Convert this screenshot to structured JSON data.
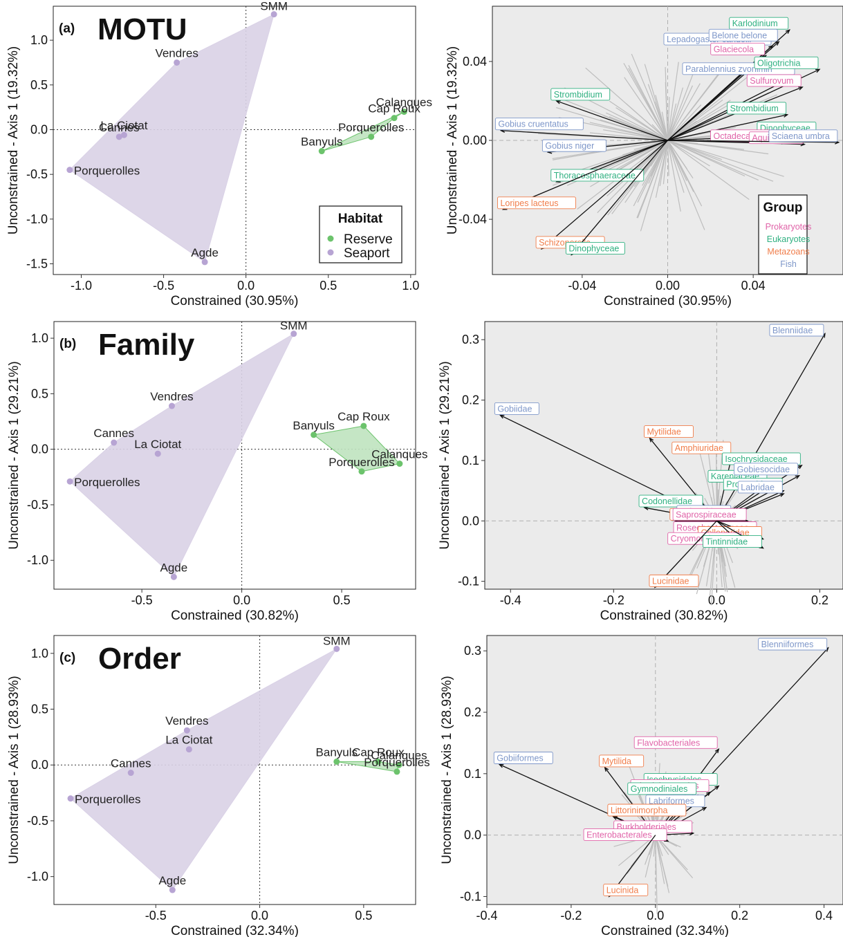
{
  "figure": {
    "colors": {
      "seaport_fill": "#d9d1e6",
      "seaport_point": "#b7a4d3",
      "reserve_fill": "#bfe3bf",
      "reserve_point": "#6cc36c",
      "prokaryotes": "#e063a8",
      "eukaryotes": "#2fb080",
      "metazoans": "#f07d4a",
      "fish": "#7e97c9",
      "biplot_bg": "#ebebeb",
      "grey_arrow": "#bdbdbd"
    },
    "habitat_legend": {
      "title": "Habitat",
      "items": [
        {
          "label": "Reserve",
          "color": "#6cc36c"
        },
        {
          "label": "Seaport",
          "color": "#b7a4d3"
        }
      ]
    },
    "group_legend": {
      "title": "Group",
      "items": [
        {
          "label": "Prokaryotes",
          "color": "#e063a8"
        },
        {
          "label": "Eukaryotes",
          "color": "#2fb080"
        },
        {
          "label": "Metazoans",
          "color": "#f07d4a"
        },
        {
          "label": "Fish",
          "color": "#7e97c9"
        }
      ]
    }
  },
  "chart_data": [
    {
      "panel": "(a)",
      "title": "MOTU",
      "type": "scatter",
      "xlabel": "Constrained (30.95%)",
      "ylabel": "Unconstrained - Axis 1 (19.32%)",
      "xlim": [
        -1.17,
        1.03
      ],
      "ylim": [
        -1.62,
        1.38
      ],
      "xticks": [
        -1.0,
        -0.5,
        0.0,
        0.5,
        1.0
      ],
      "xtick_labels": [
        "-1.0",
        "-0.5",
        "0.0",
        "0.5",
        "1.0"
      ],
      "yticks": [
        1.0,
        0.5,
        0.0,
        -0.5,
        -1.0,
        -1.5
      ],
      "ytick_labels": [
        "1.0",
        "0.5",
        "0.0",
        "-0.5",
        "-1.0",
        "-1.5"
      ],
      "seaport_hull": [
        [
          0.17,
          1.29
        ],
        [
          -0.42,
          0.75
        ],
        [
          -1.07,
          -0.45
        ],
        [
          -0.25,
          -1.48
        ]
      ],
      "reserve_hull": [
        [
          0.96,
          0.2
        ],
        [
          0.46,
          -0.24
        ],
        [
          0.76,
          -0.08
        ],
        [
          0.9,
          0.13
        ]
      ],
      "points": [
        {
          "label": "SMM",
          "x": 0.17,
          "y": 1.29,
          "habitat": "Seaport"
        },
        {
          "label": "Vendres",
          "x": -0.42,
          "y": 0.75,
          "habitat": "Seaport"
        },
        {
          "label": "La Ciotat",
          "x": -0.74,
          "y": -0.06,
          "habitat": "Seaport"
        },
        {
          "label": "Cannes",
          "x": -0.77,
          "y": -0.08,
          "habitat": "Seaport"
        },
        {
          "label": "Porquerolles",
          "x": -1.07,
          "y": -0.45,
          "habitat": "Seaport"
        },
        {
          "label": "Agde",
          "x": -0.25,
          "y": -1.48,
          "habitat": "Seaport"
        },
        {
          "label": "Calanques",
          "x": 0.96,
          "y": 0.2,
          "habitat": "Reserve"
        },
        {
          "label": "Cap Roux",
          "x": 0.9,
          "y": 0.13,
          "habitat": "Reserve"
        },
        {
          "label": "Porquerolles",
          "x": 0.76,
          "y": -0.08,
          "habitat": "Reserve"
        },
        {
          "label": "Banyuls",
          "x": 0.46,
          "y": -0.24,
          "habitat": "Reserve"
        }
      ]
    },
    {
      "panel": "",
      "title": "",
      "type": "scatter",
      "xlabel": "Constrained (30.95%)",
      "ylabel": "Unconstrained - Axis 1 (19.32%)",
      "xlim": [
        -0.082,
        0.082
      ],
      "ylim": [
        -0.068,
        0.068
      ],
      "xticks": [
        -0.04,
        0.0,
        0.04
      ],
      "xtick_labels": [
        "-0.04",
        "0.00",
        "0.04"
      ],
      "yticks": [
        0.04,
        0.0,
        -0.04
      ],
      "ytick_labels": [
        "0.04",
        "0.00",
        "-0.04"
      ],
      "arrows": [
        {
          "label": "Lepadogaster candolii",
          "group": "Fish",
          "x": 0.049,
          "y": 0.048
        },
        {
          "label": "Karlodinium",
          "group": "Eukaryotes",
          "x": 0.057,
          "y": 0.056
        },
        {
          "label": "Belone belone",
          "group": "Fish",
          "x": 0.052,
          "y": 0.05
        },
        {
          "label": "Glaciecola",
          "group": "Prokaryotes",
          "x": 0.046,
          "y": 0.043
        },
        {
          "label": "Parablennius zvonimiri",
          "group": "Fish",
          "x": 0.06,
          "y": 0.033
        },
        {
          "label": "Oligotrichia",
          "group": "Eukaryotes",
          "x": 0.071,
          "y": 0.036
        },
        {
          "label": "Sulfurovum",
          "group": "Prokaryotes",
          "x": 0.063,
          "y": 0.027
        },
        {
          "label": "Strombidium",
          "group": "Eukaryotes",
          "x": -0.052,
          "y": 0.02
        },
        {
          "label": "Strombidium",
          "group": "Eukaryotes",
          "x": 0.056,
          "y": 0.013
        },
        {
          "label": "Gobius cruentatus",
          "group": "Fish",
          "x": -0.078,
          "y": 0.005
        },
        {
          "label": "Dinophyceae",
          "group": "Eukaryotes",
          "x": 0.07,
          "y": 0.003
        },
        {
          "label": "Gobius niger",
          "group": "Fish",
          "x": -0.056,
          "y": -0.006
        },
        {
          "label": "Octadecabacter",
          "group": "Prokaryotes",
          "x": 0.055,
          "y": -0.001
        },
        {
          "label": "Aquirestis",
          "group": "Prokaryotes",
          "x": 0.064,
          "y": -0.002
        },
        {
          "label": "Sciaena umbra",
          "group": "Fish",
          "x": 0.08,
          "y": -0.001
        },
        {
          "label": "Thoracosphaeraceae",
          "group": "Eukaryotes",
          "x": -0.052,
          "y": -0.021
        },
        {
          "label": "Loripes lacteus",
          "group": "Metazoans",
          "x": -0.077,
          "y": -0.035
        },
        {
          "label": "Schizoporella",
          "group": "Metazoans",
          "x": -0.059,
          "y": -0.055
        },
        {
          "label": "Dinophyceae",
          "group": "Eukaryotes",
          "x": -0.045,
          "y": -0.058
        }
      ]
    },
    {
      "panel": "(b)",
      "title": "Family",
      "type": "scatter",
      "xlabel": "Constrained (30.82%)",
      "ylabel": "Unconstrained - Axis 1 (29.21%)",
      "xlim": [
        -0.94,
        0.87
      ],
      "ylim": [
        -1.26,
        1.15
      ],
      "xticks": [
        -0.5,
        0.0,
        0.5
      ],
      "xtick_labels": [
        "-0.5",
        "0.0",
        "0.5"
      ],
      "yticks": [
        1.0,
        0.5,
        0.0,
        -0.5,
        -1.0
      ],
      "ytick_labels": [
        "1.0",
        "0.5",
        "0.0",
        "-0.5",
        "-1.0"
      ],
      "seaport_hull": [
        [
          0.26,
          1.04
        ],
        [
          -0.35,
          0.39
        ],
        [
          -0.64,
          0.06
        ],
        [
          -0.86,
          -0.29
        ],
        [
          -0.34,
          -1.15
        ]
      ],
      "reserve_hull": [
        [
          0.36,
          0.13
        ],
        [
          0.61,
          0.21
        ],
        [
          0.79,
          -0.13
        ],
        [
          0.6,
          -0.2
        ]
      ],
      "points": [
        {
          "label": "SMM",
          "x": 0.26,
          "y": 1.04,
          "habitat": "Seaport"
        },
        {
          "label": "Vendres",
          "x": -0.35,
          "y": 0.39,
          "habitat": "Seaport"
        },
        {
          "label": "Cannes",
          "x": -0.64,
          "y": 0.06,
          "habitat": "Seaport"
        },
        {
          "label": "La Ciotat",
          "x": -0.42,
          "y": -0.04,
          "habitat": "Seaport"
        },
        {
          "label": "Porquerolles",
          "x": -0.86,
          "y": -0.29,
          "habitat": "Seaport"
        },
        {
          "label": "Agde",
          "x": -0.34,
          "y": -1.15,
          "habitat": "Seaport"
        },
        {
          "label": "Cap Roux",
          "x": 0.61,
          "y": 0.21,
          "habitat": "Reserve"
        },
        {
          "label": "Banyuls",
          "x": 0.36,
          "y": 0.13,
          "habitat": "Reserve"
        },
        {
          "label": "Calanques",
          "x": 0.79,
          "y": -0.13,
          "habitat": "Reserve"
        },
        {
          "label": "Porquerolles",
          "x": 0.6,
          "y": -0.2,
          "habitat": "Reserve"
        }
      ]
    },
    {
      "panel": "",
      "title": "",
      "type": "scatter",
      "xlabel": "Constrained (30.82%)",
      "ylabel": "Unconstrained - Axis 1 (29.21%)",
      "xlim": [
        -0.45,
        0.245
      ],
      "ylim": [
        -0.113,
        0.33
      ],
      "xticks": [
        -0.4,
        -0.2,
        0.0,
        0.2
      ],
      "xtick_labels": [
        "-0.4",
        "-0.2",
        "0.0",
        "0.2"
      ],
      "yticks": [
        0.3,
        0.2,
        0.1,
        0.0,
        -0.1
      ],
      "ytick_labels": [
        "0.3",
        "0.2",
        "0.1",
        "0.0",
        "-0.1"
      ],
      "arrows": [
        {
          "label": "Blenniidae",
          "group": "Fish",
          "x": 0.21,
          "y": 0.31
        },
        {
          "label": "Gobiidae",
          "group": "Fish",
          "x": -0.42,
          "y": 0.175
        },
        {
          "label": "Amphiuridae",
          "group": "Metazoans",
          "x": 0.03,
          "y": 0.11
        },
        {
          "label": "Mytilidae",
          "group": "Metazoans",
          "x": -0.13,
          "y": 0.137
        },
        {
          "label": "Isochrysidaceae",
          "group": "Eukaryotes",
          "x": 0.165,
          "y": 0.092
        },
        {
          "label": "Kareniaceae",
          "group": "Eukaryotes",
          "x": 0.1,
          "y": 0.063
        },
        {
          "label": "Gobiesocidae",
          "group": "Fish",
          "x": 0.16,
          "y": 0.075
        },
        {
          "label": "Protaspidae",
          "group": "Eukaryotes",
          "x": 0.13,
          "y": 0.05
        },
        {
          "label": "Labridae",
          "group": "Fish",
          "x": 0.13,
          "y": 0.045
        },
        {
          "label": "Codonellidae",
          "group": "Eukaryotes",
          "x": -0.14,
          "y": 0.022
        },
        {
          "label": "Sciaenidae",
          "group": "Fish",
          "x": 0.03,
          "y": 0.005
        },
        {
          "label": "Vermetidae",
          "group": "Metazoans",
          "x": -0.08,
          "y": 0.0
        },
        {
          "label": "Saprospiraceae",
          "group": "Prokaryotes",
          "x": 0.06,
          "y": 0.0
        },
        {
          "label": "Roseobacteraceae",
          "group": "Prokaryotes",
          "x": 0.08,
          "y": -0.022
        },
        {
          "label": "Celleporidae",
          "group": "Metazoans",
          "x": 0.09,
          "y": -0.03
        },
        {
          "label": "Cryomorphaceae",
          "group": "Prokaryotes",
          "x": 0.05,
          "y": -0.04
        },
        {
          "label": "Tintinnidae",
          "group": "Eukaryotes",
          "x": 0.09,
          "y": -0.045
        },
        {
          "label": "Lucinidae",
          "group": "Metazoans",
          "x": -0.12,
          "y": -0.11
        }
      ]
    },
    {
      "panel": "(c)",
      "title": "Order",
      "type": "scatter",
      "xlabel": "Constrained (32.34%)",
      "ylabel": "Unconstrained - Axis 1 (28.93%)",
      "xlim": [
        -0.99,
        0.75
      ],
      "ylim": [
        -1.25,
        1.16
      ],
      "xticks": [
        -0.5,
        0.0,
        0.5
      ],
      "xtick_labels": [
        "-0.5",
        "0.0",
        "0.5"
      ],
      "yticks": [
        1.0,
        0.5,
        0.0,
        -0.5,
        -1.0
      ],
      "ytick_labels": [
        "1.0",
        "0.5",
        "0.0",
        "-0.5",
        "-1.0"
      ],
      "seaport_hull": [
        [
          0.37,
          1.04
        ],
        [
          -0.35,
          0.31
        ],
        [
          -0.91,
          -0.3
        ],
        [
          -0.42,
          -1.12
        ]
      ],
      "reserve_hull": [
        [
          0.37,
          0.03
        ],
        [
          0.57,
          0.03
        ],
        [
          0.67,
          0.0
        ],
        [
          0.66,
          -0.06
        ]
      ],
      "points": [
        {
          "label": "SMM",
          "x": 0.37,
          "y": 1.04,
          "habitat": "Seaport"
        },
        {
          "label": "Vendres",
          "x": -0.35,
          "y": 0.31,
          "habitat": "Seaport"
        },
        {
          "label": "La Ciotat",
          "x": -0.34,
          "y": 0.14,
          "habitat": "Seaport"
        },
        {
          "label": "Cannes",
          "x": -0.62,
          "y": -0.07,
          "habitat": "Seaport"
        },
        {
          "label": "Porquerolles",
          "x": -0.91,
          "y": -0.3,
          "habitat": "Seaport"
        },
        {
          "label": "Agde",
          "x": -0.42,
          "y": -1.12,
          "habitat": "Seaport"
        },
        {
          "label": "Banyuls",
          "x": 0.37,
          "y": 0.03,
          "habitat": "Reserve"
        },
        {
          "label": "Cap Roux",
          "x": 0.57,
          "y": 0.03,
          "habitat": "Reserve"
        },
        {
          "label": "Calanques",
          "x": 0.67,
          "y": 0.0,
          "habitat": "Reserve"
        },
        {
          "label": "Porquerolles",
          "x": 0.66,
          "y": -0.06,
          "habitat": "Reserve"
        }
      ]
    },
    {
      "panel": "",
      "title": "",
      "type": "scatter",
      "xlabel": "Constrained (32.34%)",
      "ylabel": "Unconstrained - Axis 1 (28.93%)",
      "xlim": [
        -0.4,
        0.445
      ],
      "ylim": [
        -0.113,
        0.325
      ],
      "xticks": [
        -0.4,
        -0.2,
        0.0,
        0.2,
        0.4
      ],
      "xtick_labels": [
        "-0.4",
        "-0.2",
        "0.0",
        "0.2",
        "0.4"
      ],
      "yticks": [
        0.3,
        0.2,
        0.1,
        0.0,
        -0.1
      ],
      "ytick_labels": [
        "0.3",
        "0.2",
        "0.1",
        "0.0",
        "-0.1"
      ],
      "arrows": [
        {
          "label": "Blenniiformes",
          "group": "Fish",
          "x": 0.41,
          "y": 0.305
        },
        {
          "label": "Gobiiformes",
          "group": "Fish",
          "x": -0.37,
          "y": 0.115
        },
        {
          "label": "Mytilida",
          "group": "Metazoans",
          "x": -0.12,
          "y": 0.11
        },
        {
          "label": "Flavobacteriales",
          "group": "Prokaryotes",
          "x": 0.15,
          "y": 0.14
        },
        {
          "label": "Isochrysidales",
          "group": "Eukaryotes",
          "x": 0.15,
          "y": 0.08
        },
        {
          "label": "Rhodobacterales",
          "group": "Prokaryotes",
          "x": 0.13,
          "y": 0.07
        },
        {
          "label": "Gymnodiniales",
          "group": "Eukaryotes",
          "x": 0.1,
          "y": 0.065
        },
        {
          "label": "Labriformes",
          "group": "Fish",
          "x": 0.12,
          "y": 0.045
        },
        {
          "label": "Littorinimorpha",
          "group": "Metazoans",
          "x": -0.1,
          "y": 0.03
        },
        {
          "label": "Burkholderiales",
          "group": "Prokaryotes",
          "x": 0.09,
          "y": 0.003
        },
        {
          "label": "Enterobacterales",
          "group": "Prokaryotes",
          "x": 0.03,
          "y": -0.01
        },
        {
          "label": "Lucinida",
          "group": "Metazoans",
          "x": -0.11,
          "y": -0.1
        }
      ]
    }
  ]
}
